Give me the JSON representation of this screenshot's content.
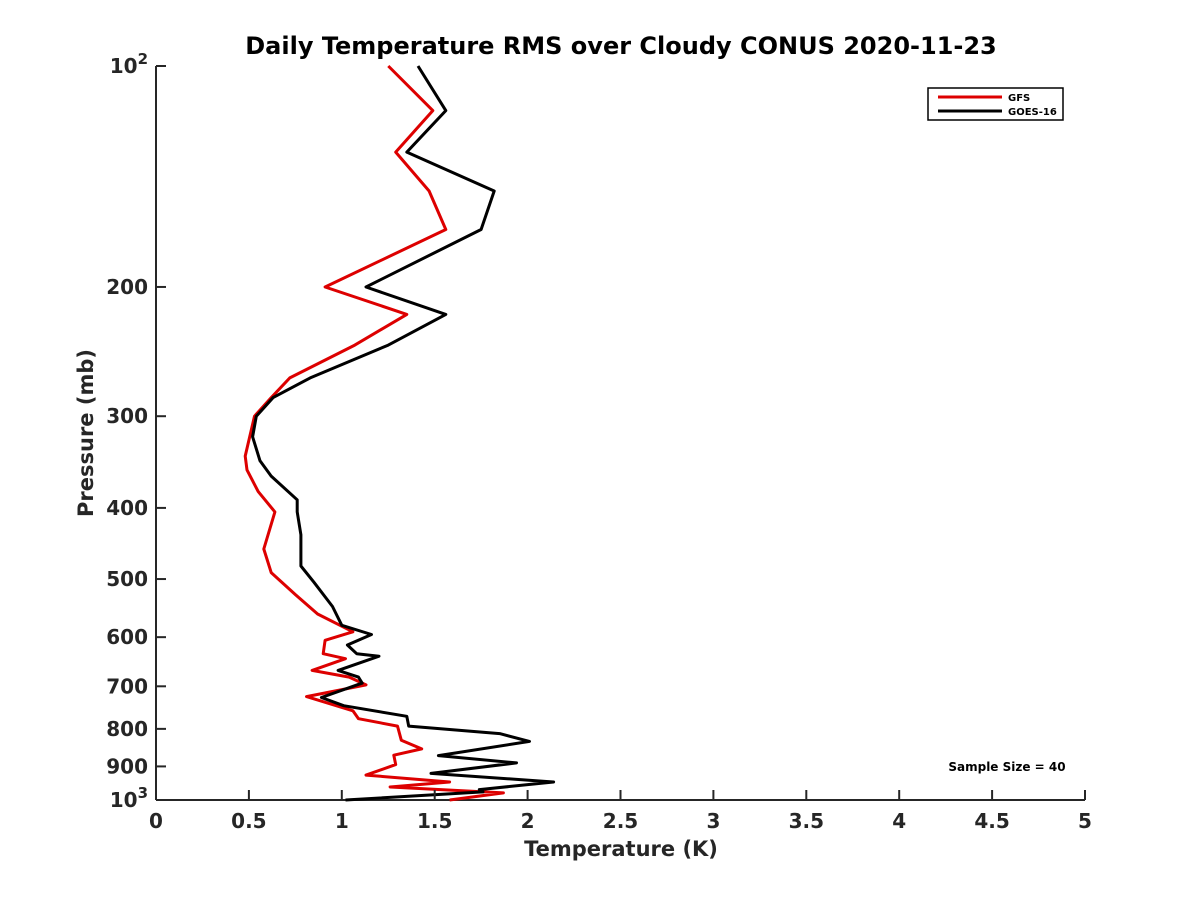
{
  "chart_data": {
    "type": "line",
    "title": "Daily Temperature RMS over Cloudy CONUS 2020-11-23",
    "xlabel": "Temperature (K)",
    "ylabel": "Pressure (mb)",
    "xlim": [
      0,
      5
    ],
    "ylim": [
      100,
      1000
    ],
    "yscale": "log",
    "y_reversed": true,
    "x_ticks": [
      0,
      0.5,
      1,
      1.5,
      2,
      2.5,
      3,
      3.5,
      4,
      4.5,
      5
    ],
    "x_tick_labels": [
      "0",
      "0.5",
      "1",
      "1.5",
      "2",
      "2.5",
      "3",
      "3.5",
      "4",
      "4.5",
      "5"
    ],
    "y_ticks": [
      100,
      200,
      300,
      400,
      500,
      600,
      700,
      800,
      900,
      1000
    ],
    "y_tick_labels": [
      {
        "base": "10",
        "exp": "2"
      },
      {
        "text": "200"
      },
      {
        "text": "300"
      },
      {
        "text": "400"
      },
      {
        "text": "500"
      },
      {
        "text": "600"
      },
      {
        "text": "700"
      },
      {
        "text": "800"
      },
      {
        "text": "900"
      },
      {
        "base": "10",
        "exp": "3"
      }
    ],
    "legend_position": "top-right",
    "annotation": "Sample Size = 40",
    "series": [
      {
        "name": "GFS",
        "color": "#dd0000",
        "points": [
          [
            1.25,
            100
          ],
          [
            1.49,
            115
          ],
          [
            1.29,
            131
          ],
          [
            1.47,
            148
          ],
          [
            1.56,
            167
          ],
          [
            0.91,
            200
          ],
          [
            1.35,
            218
          ],
          [
            1.07,
            240
          ],
          [
            0.72,
            266
          ],
          [
            0.62,
            283
          ],
          [
            0.53,
            300
          ],
          [
            0.48,
            340
          ],
          [
            0.49,
            355
          ],
          [
            0.55,
            380
          ],
          [
            0.64,
            405
          ],
          [
            0.58,
            455
          ],
          [
            0.62,
            490
          ],
          [
            0.75,
            525
          ],
          [
            0.87,
            558
          ],
          [
            1.06,
            590
          ],
          [
            0.91,
            606
          ],
          [
            0.9,
            632
          ],
          [
            1.02,
            642
          ],
          [
            0.84,
            666
          ],
          [
            1.04,
            680
          ],
          [
            1.13,
            697
          ],
          [
            0.81,
            723
          ],
          [
            1.06,
            756
          ],
          [
            1.09,
            775
          ],
          [
            1.3,
            793
          ],
          [
            1.32,
            829
          ],
          [
            1.43,
            852
          ],
          [
            1.28,
            869
          ],
          [
            1.29,
            895
          ],
          [
            1.13,
            925
          ],
          [
            1.58,
            945
          ],
          [
            1.26,
            960
          ],
          [
            1.87,
            978
          ],
          [
            1.58,
            1000
          ]
        ]
      },
      {
        "name": "GOES-16",
        "color": "#000000",
        "points": [
          [
            1.41,
            100
          ],
          [
            1.56,
            115
          ],
          [
            1.35,
            131
          ],
          [
            1.82,
            148
          ],
          [
            1.75,
            167
          ],
          [
            1.13,
            200
          ],
          [
            1.56,
            218
          ],
          [
            1.25,
            240
          ],
          [
            0.83,
            266
          ],
          [
            0.63,
            283
          ],
          [
            0.54,
            300
          ],
          [
            0.52,
            320
          ],
          [
            0.56,
            345
          ],
          [
            0.62,
            362
          ],
          [
            0.76,
            390
          ],
          [
            0.76,
            405
          ],
          [
            0.78,
            435
          ],
          [
            0.78,
            480
          ],
          [
            0.85,
            505
          ],
          [
            0.95,
            545
          ],
          [
            1.0,
            578
          ],
          [
            1.16,
            595
          ],
          [
            1.03,
            615
          ],
          [
            1.08,
            632
          ],
          [
            1.2,
            637
          ],
          [
            0.98,
            666
          ],
          [
            1.09,
            680
          ],
          [
            1.11,
            693
          ],
          [
            0.89,
            725
          ],
          [
            1.01,
            744
          ],
          [
            1.35,
            769
          ],
          [
            1.36,
            793
          ],
          [
            1.85,
            812
          ],
          [
            2.01,
            832
          ],
          [
            1.52,
            870
          ],
          [
            1.94,
            890
          ],
          [
            1.48,
            920
          ],
          [
            2.14,
            945
          ],
          [
            1.74,
            968
          ],
          [
            1.76,
            975
          ],
          [
            1.02,
            1000
          ]
        ]
      }
    ]
  }
}
